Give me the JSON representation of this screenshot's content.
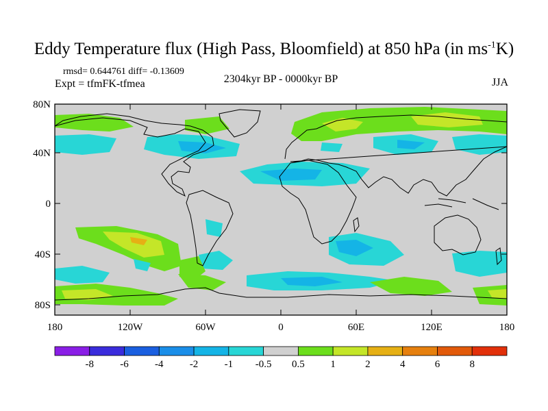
{
  "header": {
    "title_main": "Eddy Temperature flux (High Pass, Bloomfield) at 850 hPa (in ms",
    "title_sup": "-1",
    "title_end": "K)",
    "stats": "rmsd= 0.644761 diff= -0.13609",
    "expt": "Expt = tfmFK-tfmea",
    "period": "2304kyr BP - 0000kyr BP",
    "season": "JJA"
  },
  "axes": {
    "x_ticks": [
      "180",
      "120W",
      "60W",
      "0",
      "60E",
      "120E",
      "180"
    ],
    "y_ticks": [
      "80N",
      "40N",
      "0",
      "40S",
      "80S"
    ]
  },
  "colorbar": {
    "labels": [
      "-8",
      "-6",
      "-4",
      "-2",
      "-1",
      "-0.5",
      "0.5",
      "1",
      "2",
      "4",
      "6",
      "8"
    ],
    "colors": [
      "#8a1ee6",
      "#3a2cdc",
      "#1a5fe0",
      "#1a8ee8",
      "#14b4e6",
      "#28d6d6",
      "#d0d0d0",
      "#6cde1c",
      "#c4e628",
      "#e6b014",
      "#e6800e",
      "#e25a0a",
      "#e2300a"
    ]
  }
}
